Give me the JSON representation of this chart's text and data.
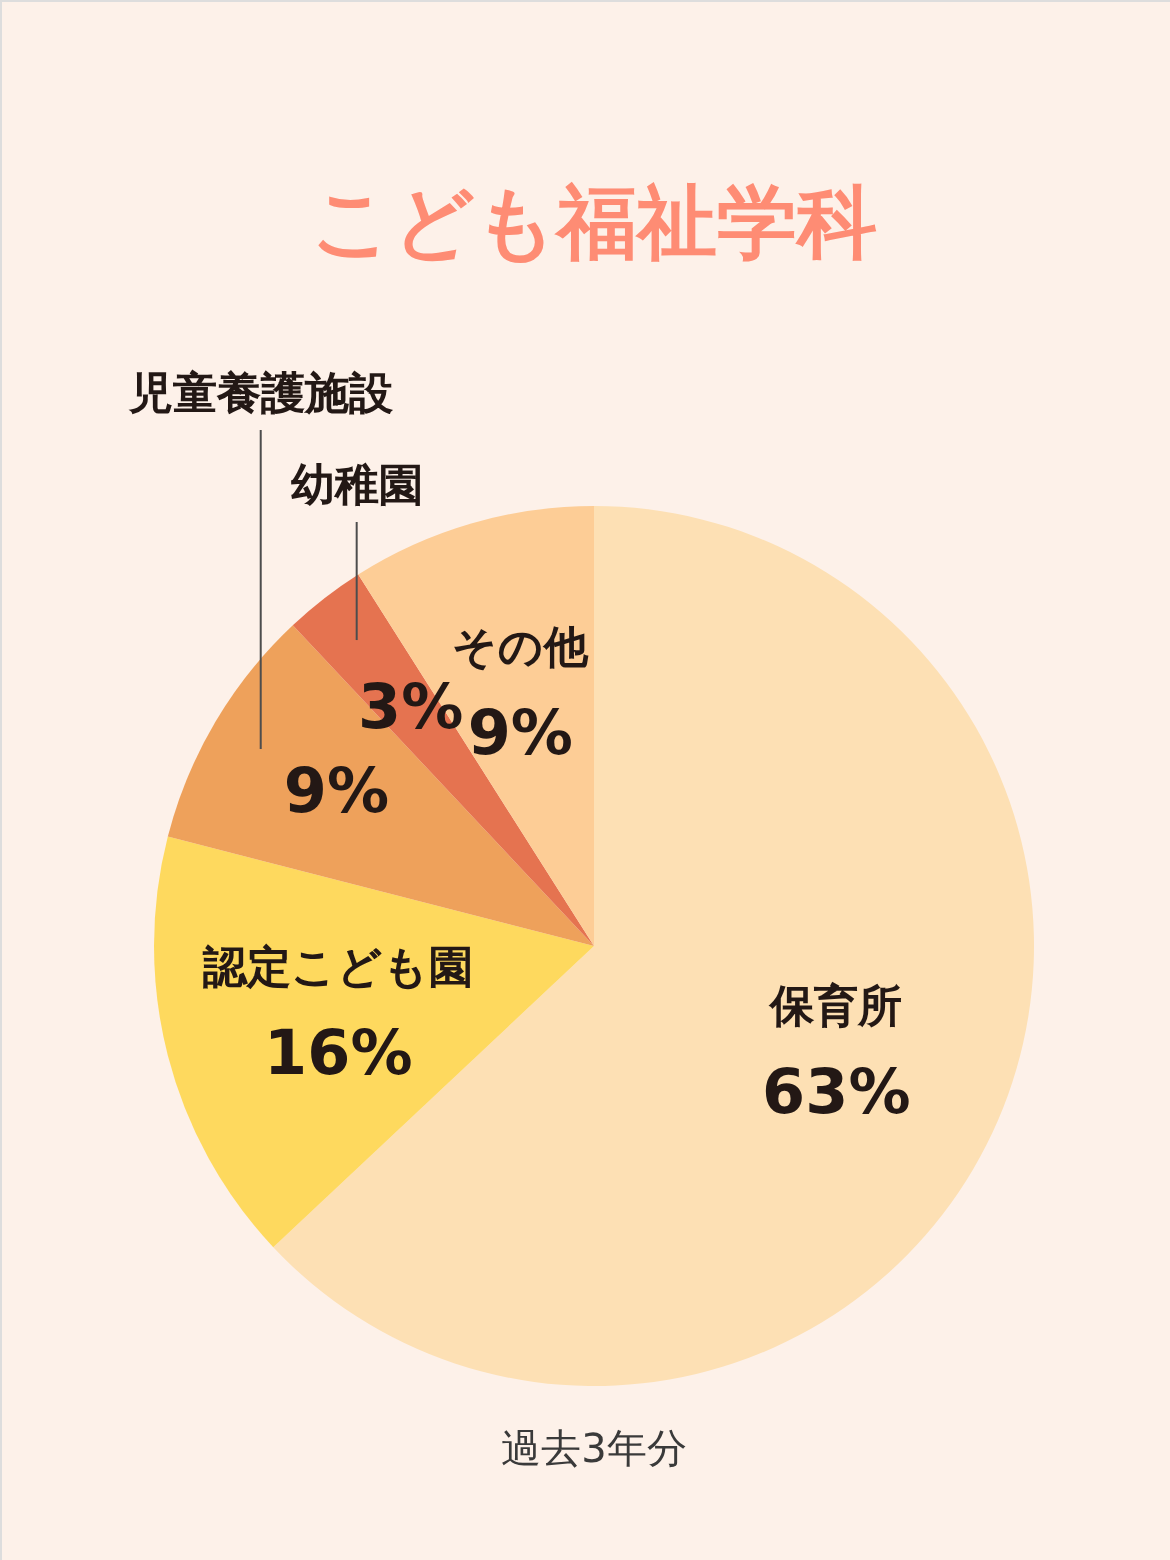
{
  "chart_data": {
    "type": "pie",
    "title": "こども福祉学科",
    "categories": [
      "保育所",
      "認定こども園",
      "児童養護施設",
      "幼稚園",
      "その他"
    ],
    "values": [
      63,
      16,
      9,
      3,
      9
    ],
    "value_labels": [
      "63%",
      "16%",
      "9%",
      "3%",
      "9%"
    ],
    "colors": [
      "#fde0b4",
      "#fed95e",
      "#eea15b",
      "#e57350",
      "#fdcd96"
    ],
    "annotations": [
      "過去3年分"
    ]
  }
}
